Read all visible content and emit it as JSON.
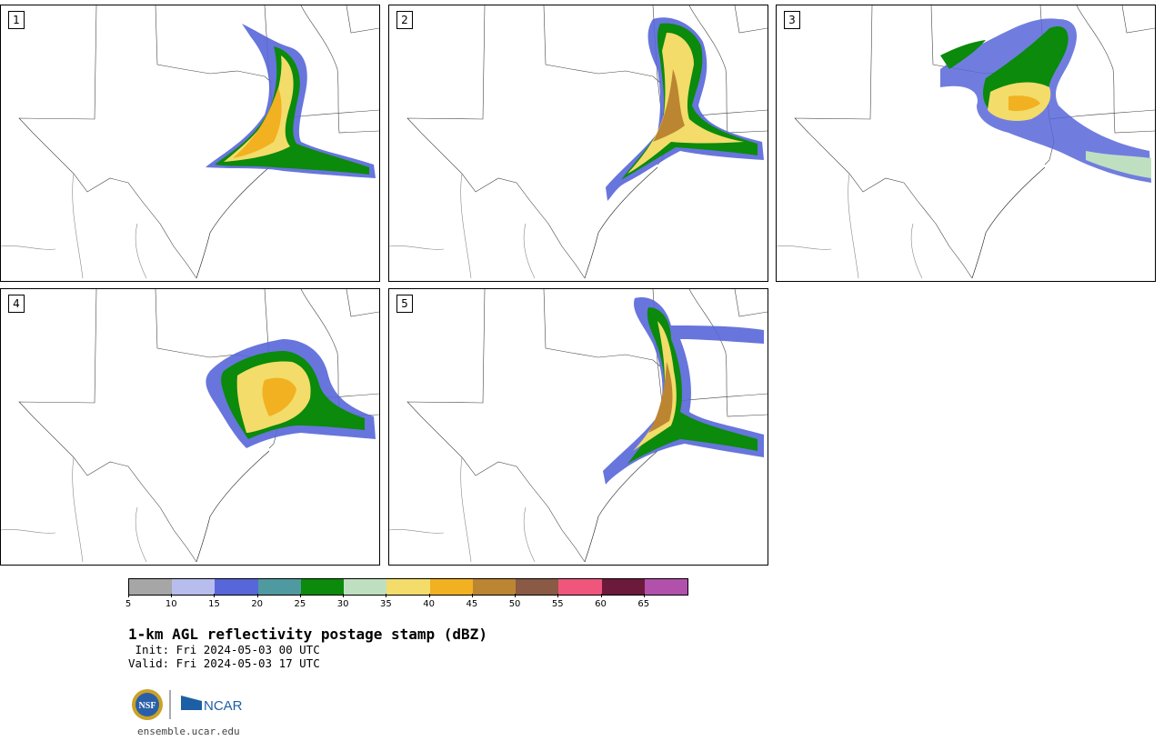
{
  "panels": [
    {
      "number": "1"
    },
    {
      "number": "2"
    },
    {
      "number": "3"
    },
    {
      "number": "4"
    },
    {
      "number": "5"
    }
  ],
  "colorbar": {
    "unit": "dBZ",
    "tick_labels": [
      "5",
      "10",
      "15",
      "20",
      "25",
      "30",
      "35",
      "40",
      "45",
      "50",
      "55",
      "60",
      "65"
    ],
    "colors": [
      "#a6a6a6",
      "#b7bdec",
      "#5766d9",
      "#4f9aa0",
      "#0b8a0b",
      "#bfe0c0",
      "#f3dc6a",
      "#f1b121",
      "#bc8532",
      "#8a5a45",
      "#f0567c",
      "#6c1a3b",
      "#b251ab"
    ]
  },
  "product": {
    "title": "1-km AGL reflectivity postage stamp (dBZ)",
    "init_line": " Init: Fri 2024-05-03 00 UTC",
    "valid_line": "Valid: Fri 2024-05-03 17 UTC"
  },
  "branding": {
    "nsf_label": "NSF",
    "ncar_label": "NCAR",
    "url": "ensemble.ucar.edu"
  }
}
